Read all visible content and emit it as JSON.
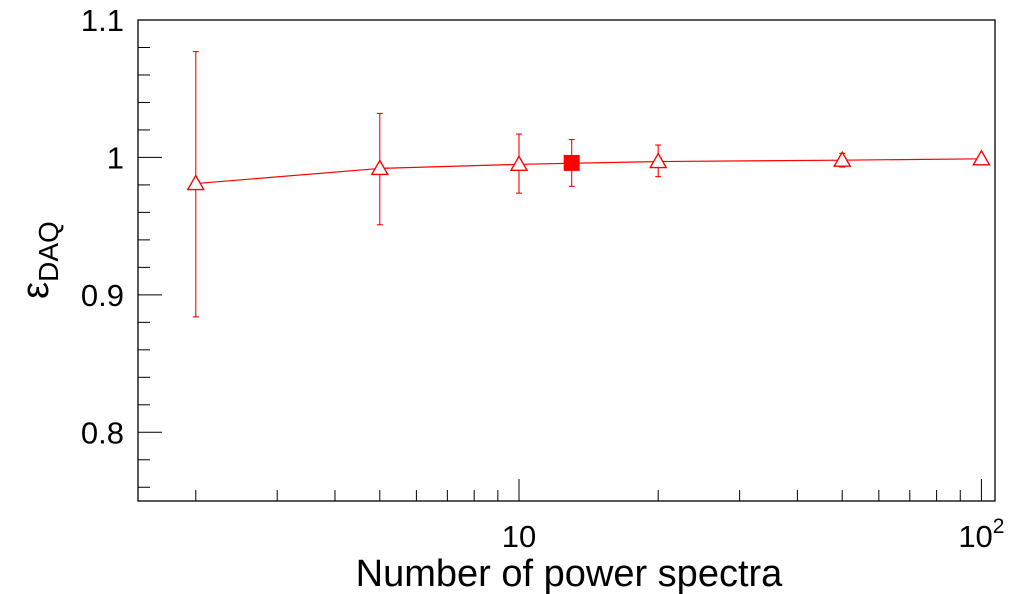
{
  "chart_data": {
    "type": "scatter",
    "xlabel": "Number of power spectra",
    "ylabel": "ε",
    "ylabel_sub": "DAQ",
    "xscale": "log",
    "xlim": [
      1.5,
      107
    ],
    "ylim": [
      0.75,
      1.1
    ],
    "grid": false,
    "x_ticks": [
      {
        "value": 10,
        "label": "10",
        "sup": ""
      },
      {
        "value": 100,
        "label": "10",
        "sup": "2"
      }
    ],
    "y_ticks": [
      {
        "value": 0.8,
        "label": "0.8"
      },
      {
        "value": 0.9,
        "label": "0.9"
      },
      {
        "value": 1.0,
        "label": "1"
      },
      {
        "value": 1.1,
        "label": "1.1"
      }
    ],
    "color": "#ff0000",
    "series": [
      {
        "marker": "open-triangle",
        "connected": true,
        "points": [
          {
            "x": 2,
            "y": 0.981,
            "yerr_low": 0.097,
            "yerr_high": 0.096
          },
          {
            "x": 5,
            "y": 0.992,
            "yerr_low": 0.041,
            "yerr_high": 0.04
          },
          {
            "x": 10,
            "y": 0.995,
            "yerr_low": 0.021,
            "yerr_high": 0.022
          },
          {
            "x": 20,
            "y": 0.997,
            "yerr_low": 0.011,
            "yerr_high": 0.012
          },
          {
            "x": 50,
            "y": 0.998,
            "yerr_low": 0.005,
            "yerr_high": 0.005
          },
          {
            "x": 100,
            "y": 0.999,
            "yerr_low": 0.002,
            "yerr_high": 0.002
          }
        ]
      },
      {
        "marker": "filled-square",
        "connected": false,
        "points": [
          {
            "x": 13,
            "y": 0.996,
            "yerr_low": 0.017,
            "yerr_high": 0.017
          }
        ]
      }
    ]
  }
}
